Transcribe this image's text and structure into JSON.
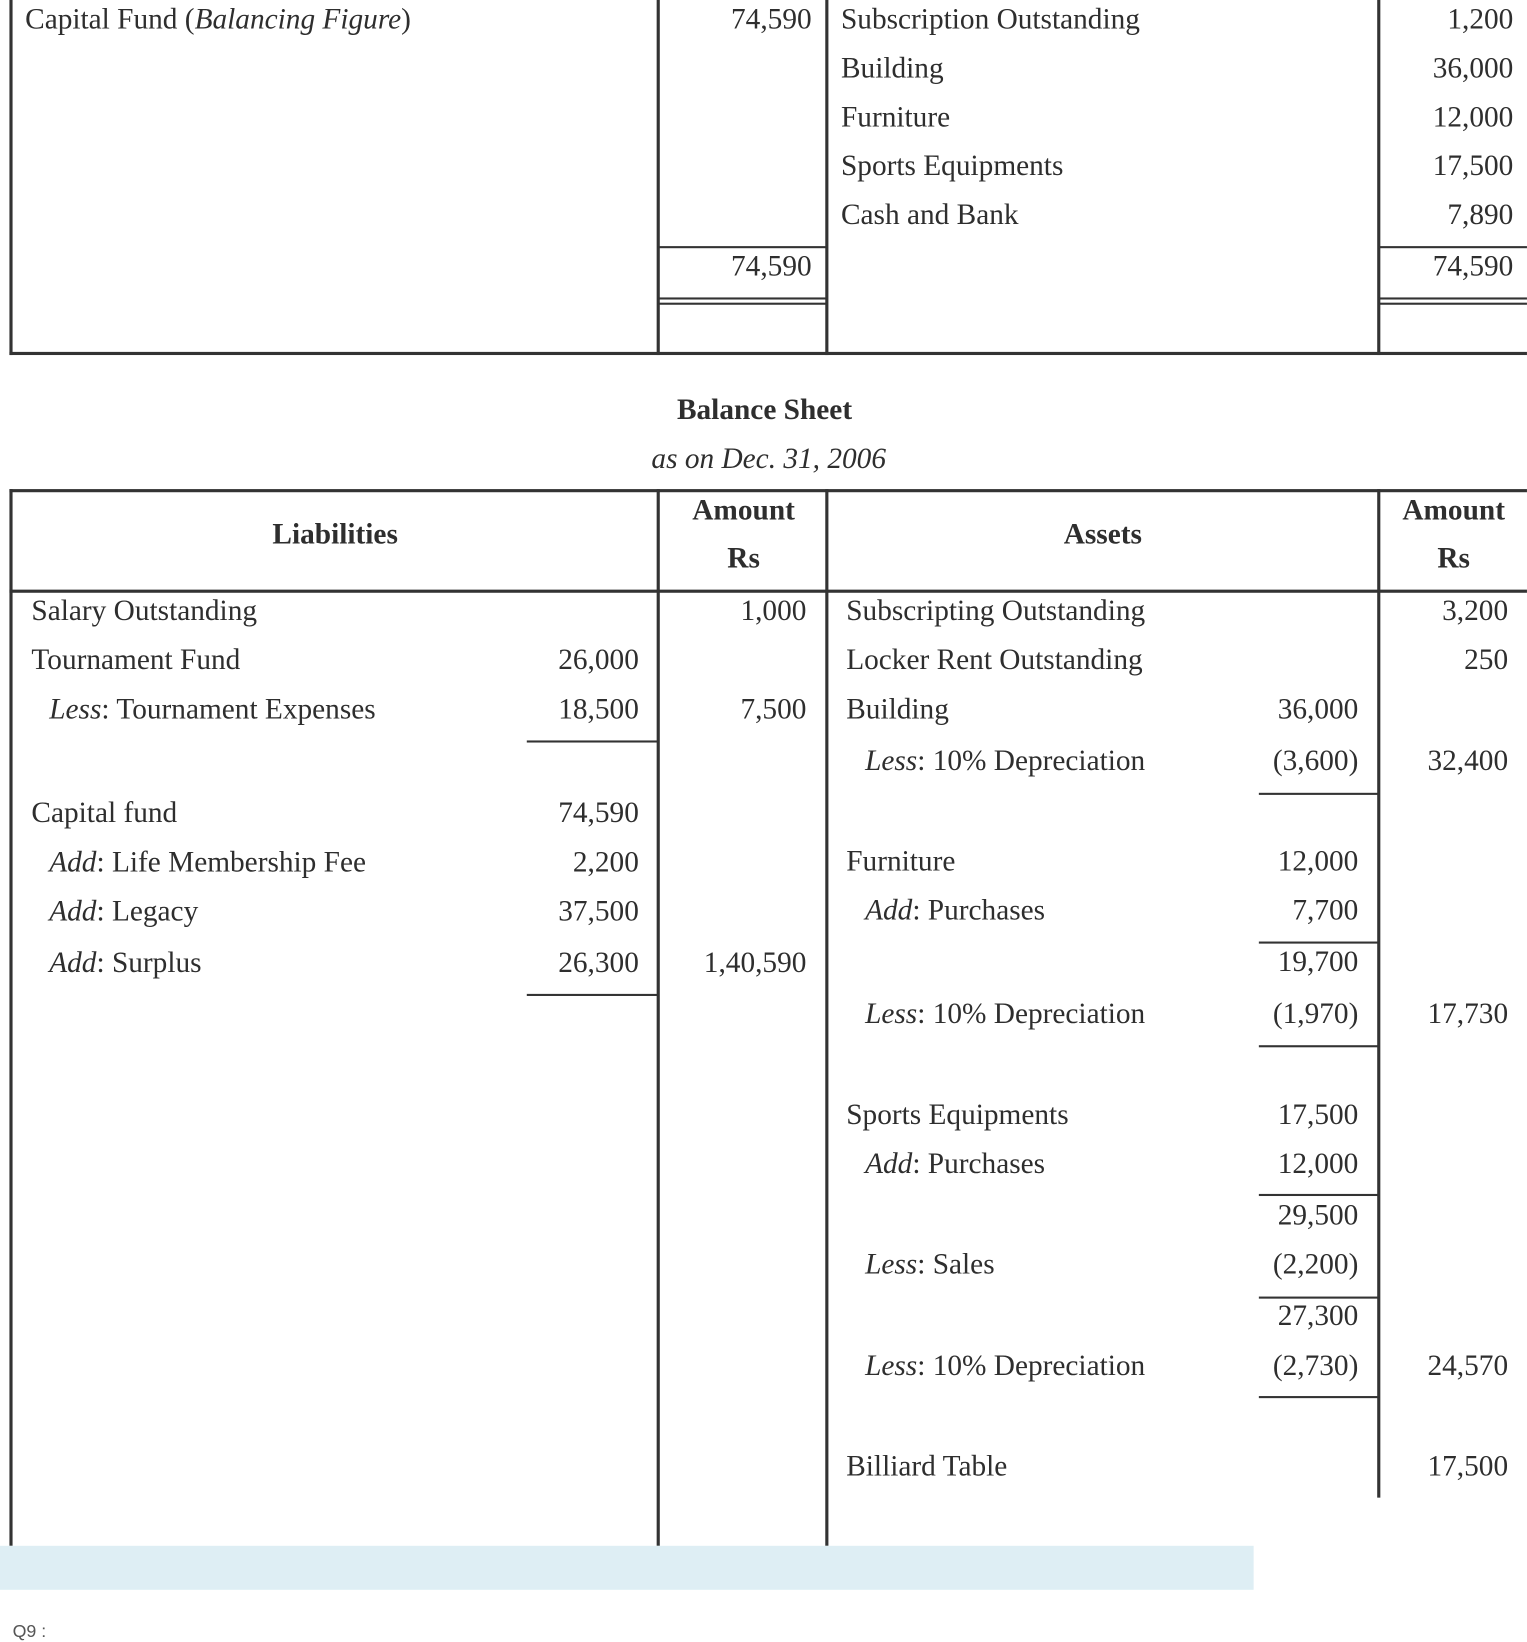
{
  "top_table": {
    "liabilities": [
      {
        "label": "Capital Fund",
        "note": "Balancing Figure",
        "amount": "74,590"
      }
    ],
    "liabilities_total": "74,590",
    "assets": [
      {
        "label": "Subscription Outstanding",
        "amount": "1,200"
      },
      {
        "label": "Building",
        "amount": "36,000"
      },
      {
        "label": "Furniture",
        "amount": "12,000"
      },
      {
        "label": "Sports Equipments",
        "amount": "17,500"
      },
      {
        "label": "Cash and Bank",
        "amount": "7,890"
      }
    ],
    "assets_total": "74,590"
  },
  "balance_sheet": {
    "title": "Balance Sheet",
    "subtitle": "as on Dec. 31, 2006",
    "headers": {
      "liabilities": "Liabilities",
      "amount": "Amount",
      "currency": "Rs",
      "assets": "Assets"
    },
    "liabilities": [
      {
        "prefix": "",
        "label": "Salary Outstanding",
        "inner": "",
        "amount": "1,000"
      },
      {
        "prefix": "",
        "label": "Tournament Fund",
        "inner": "26,000",
        "amount": ""
      },
      {
        "prefix": "Less",
        "label": "Tournament Expenses",
        "inner": "18,500",
        "amount": "7,500"
      },
      {
        "prefix": "",
        "label": "Capital fund",
        "inner": "74,590",
        "amount": ""
      },
      {
        "prefix": "Add",
        "label": "Life Membership Fee",
        "inner": "2,200",
        "amount": ""
      },
      {
        "prefix": "Add",
        "label": "Legacy",
        "inner": "37,500",
        "amount": ""
      },
      {
        "prefix": "Add",
        "label": "Surplus",
        "inner": "26,300",
        "amount": "1,40,590"
      }
    ],
    "assets": [
      {
        "prefix": "",
        "label": "Subscripting Outstanding",
        "inner": "",
        "amount": "3,200"
      },
      {
        "prefix": "",
        "label": "Locker Rent Outstanding",
        "inner": "",
        "amount": "250"
      },
      {
        "prefix": "",
        "label": "Building",
        "inner": "36,000",
        "amount": ""
      },
      {
        "prefix": "Less",
        "label": "10% Depreciation",
        "inner": "(3,600)",
        "amount": "32,400"
      },
      {
        "prefix": "",
        "label": "Furniture",
        "inner": "12,000",
        "amount": ""
      },
      {
        "prefix": "Add",
        "label": "Purchases",
        "inner": "7,700",
        "amount": ""
      },
      {
        "prefix": "",
        "label": "",
        "inner": "19,700",
        "amount": ""
      },
      {
        "prefix": "Less",
        "label": "10% Depreciation",
        "inner": "(1,970)",
        "amount": "17,730"
      },
      {
        "prefix": "",
        "label": "Sports Equipments",
        "inner": "17,500",
        "amount": ""
      },
      {
        "prefix": "Add",
        "label": "Purchases",
        "inner": "12,000",
        "amount": ""
      },
      {
        "prefix": "",
        "label": "",
        "inner": "29,500",
        "amount": ""
      },
      {
        "prefix": "Less",
        "label": "Sales",
        "inner": "(2,200)",
        "amount": ""
      },
      {
        "prefix": "",
        "label": "",
        "inner": "27,300",
        "amount": ""
      },
      {
        "prefix": "Less",
        "label": "10% Depreciation",
        "inner": "(2,730)",
        "amount": "24,570"
      },
      {
        "prefix": "",
        "label": "Billiard Table",
        "inner": "",
        "amount": "17,500"
      }
    ]
  },
  "footer": {
    "question_label": "Q9 :"
  },
  "colors": {
    "band": "#deeef4",
    "rule": "#333333"
  }
}
